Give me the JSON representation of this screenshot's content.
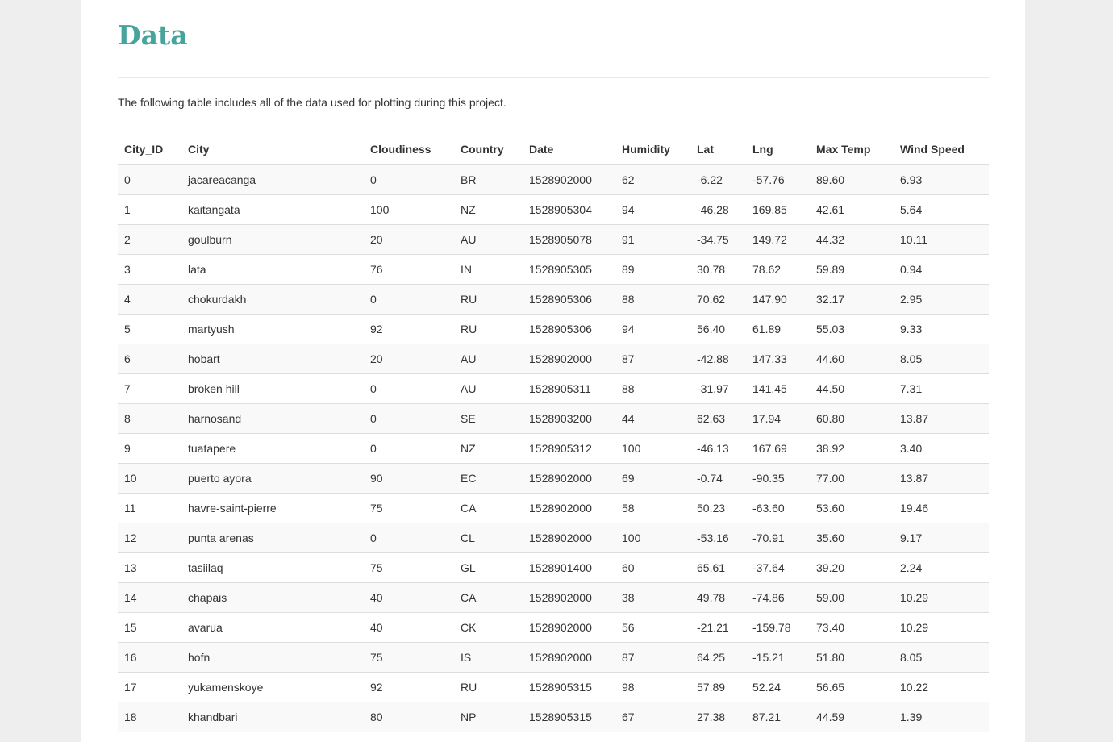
{
  "page": {
    "title": "Data",
    "intro": "The following table includes all of the data used for plotting during this project."
  },
  "table": {
    "headers": [
      "City_ID",
      "City",
      "Cloudiness",
      "Country",
      "Date",
      "Humidity",
      "Lat",
      "Lng",
      "Max Temp",
      "Wind Speed"
    ],
    "rows": [
      [
        "0",
        "jacareacanga",
        "0",
        "BR",
        "1528902000",
        "62",
        "-6.22",
        "-57.76",
        "89.60",
        "6.93"
      ],
      [
        "1",
        "kaitangata",
        "100",
        "NZ",
        "1528905304",
        "94",
        "-46.28",
        "169.85",
        "42.61",
        "5.64"
      ],
      [
        "2",
        "goulburn",
        "20",
        "AU",
        "1528905078",
        "91",
        "-34.75",
        "149.72",
        "44.32",
        "10.11"
      ],
      [
        "3",
        "lata",
        "76",
        "IN",
        "1528905305",
        "89",
        "30.78",
        "78.62",
        "59.89",
        "0.94"
      ],
      [
        "4",
        "chokurdakh",
        "0",
        "RU",
        "1528905306",
        "88",
        "70.62",
        "147.90",
        "32.17",
        "2.95"
      ],
      [
        "5",
        "martyush",
        "92",
        "RU",
        "1528905306",
        "94",
        "56.40",
        "61.89",
        "55.03",
        "9.33"
      ],
      [
        "6",
        "hobart",
        "20",
        "AU",
        "1528902000",
        "87",
        "-42.88",
        "147.33",
        "44.60",
        "8.05"
      ],
      [
        "7",
        "broken hill",
        "0",
        "AU",
        "1528905311",
        "88",
        "-31.97",
        "141.45",
        "44.50",
        "7.31"
      ],
      [
        "8",
        "harnosand",
        "0",
        "SE",
        "1528903200",
        "44",
        "62.63",
        "17.94",
        "60.80",
        "13.87"
      ],
      [
        "9",
        "tuatapere",
        "0",
        "NZ",
        "1528905312",
        "100",
        "-46.13",
        "167.69",
        "38.92",
        "3.40"
      ],
      [
        "10",
        "puerto ayora",
        "90",
        "EC",
        "1528902000",
        "69",
        "-0.74",
        "-90.35",
        "77.00",
        "13.87"
      ],
      [
        "11",
        "havre-saint-pierre",
        "75",
        "CA",
        "1528902000",
        "58",
        "50.23",
        "-63.60",
        "53.60",
        "19.46"
      ],
      [
        "12",
        "punta arenas",
        "0",
        "CL",
        "1528902000",
        "100",
        "-53.16",
        "-70.91",
        "35.60",
        "9.17"
      ],
      [
        "13",
        "tasiilaq",
        "75",
        "GL",
        "1528901400",
        "60",
        "65.61",
        "-37.64",
        "39.20",
        "2.24"
      ],
      [
        "14",
        "chapais",
        "40",
        "CA",
        "1528902000",
        "38",
        "49.78",
        "-74.86",
        "59.00",
        "10.29"
      ],
      [
        "15",
        "avarua",
        "40",
        "CK",
        "1528902000",
        "56",
        "-21.21",
        "-159.78",
        "73.40",
        "10.29"
      ],
      [
        "16",
        "hofn",
        "75",
        "IS",
        "1528902000",
        "87",
        "64.25",
        "-15.21",
        "51.80",
        "8.05"
      ],
      [
        "17",
        "yukamenskoye",
        "92",
        "RU",
        "1528905315",
        "98",
        "57.89",
        "52.24",
        "56.65",
        "10.22"
      ],
      [
        "18",
        "khandbari",
        "80",
        "NP",
        "1528905315",
        "67",
        "27.38",
        "87.21",
        "44.59",
        "1.39"
      ]
    ]
  },
  "colors": {
    "title": "#46a49c",
    "text": "#333333",
    "row_stripe": "#f9f9f9",
    "border": "#dddddd",
    "background": "#eeeeee"
  }
}
